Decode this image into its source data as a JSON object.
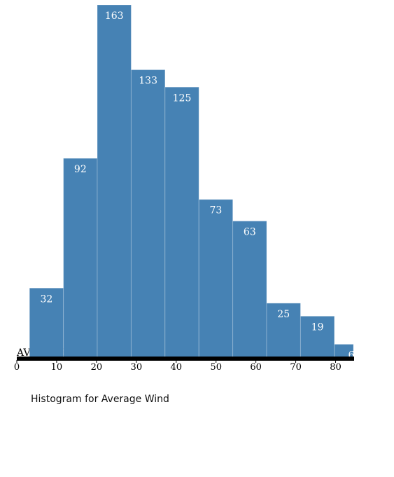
{
  "caption": "Histogram for Average Wind",
  "chart_data": {
    "type": "bar",
    "title": "",
    "xlabel": "AVERAGE WIND",
    "ylabel": "",
    "bar_color": "#4682b4",
    "axis_color": "#000000",
    "bins": [
      {
        "x0": 3.2,
        "x1": 11.7,
        "count": 32
      },
      {
        "x0": 11.7,
        "x1": 20.2,
        "count": 92
      },
      {
        "x0": 20.2,
        "x1": 28.7,
        "count": 163
      },
      {
        "x0": 28.7,
        "x1": 37.2,
        "count": 133
      },
      {
        "x0": 37.2,
        "x1": 45.7,
        "count": 125
      },
      {
        "x0": 45.7,
        "x1": 54.2,
        "count": 73
      },
      {
        "x0": 54.2,
        "x1": 62.7,
        "count": 63
      },
      {
        "x0": 62.7,
        "x1": 71.2,
        "count": 25
      },
      {
        "x0": 71.2,
        "x1": 79.7,
        "count": 19
      },
      {
        "x0": 79.7,
        "x1": 88.2,
        "count": 6
      }
    ],
    "xlim": [
      0,
      85
    ],
    "ylim": [
      0,
      170
    ],
    "xticks": [
      "0",
      "10",
      "20",
      "30",
      "40",
      "50",
      "60",
      "70",
      "80"
    ],
    "grid": false
  }
}
